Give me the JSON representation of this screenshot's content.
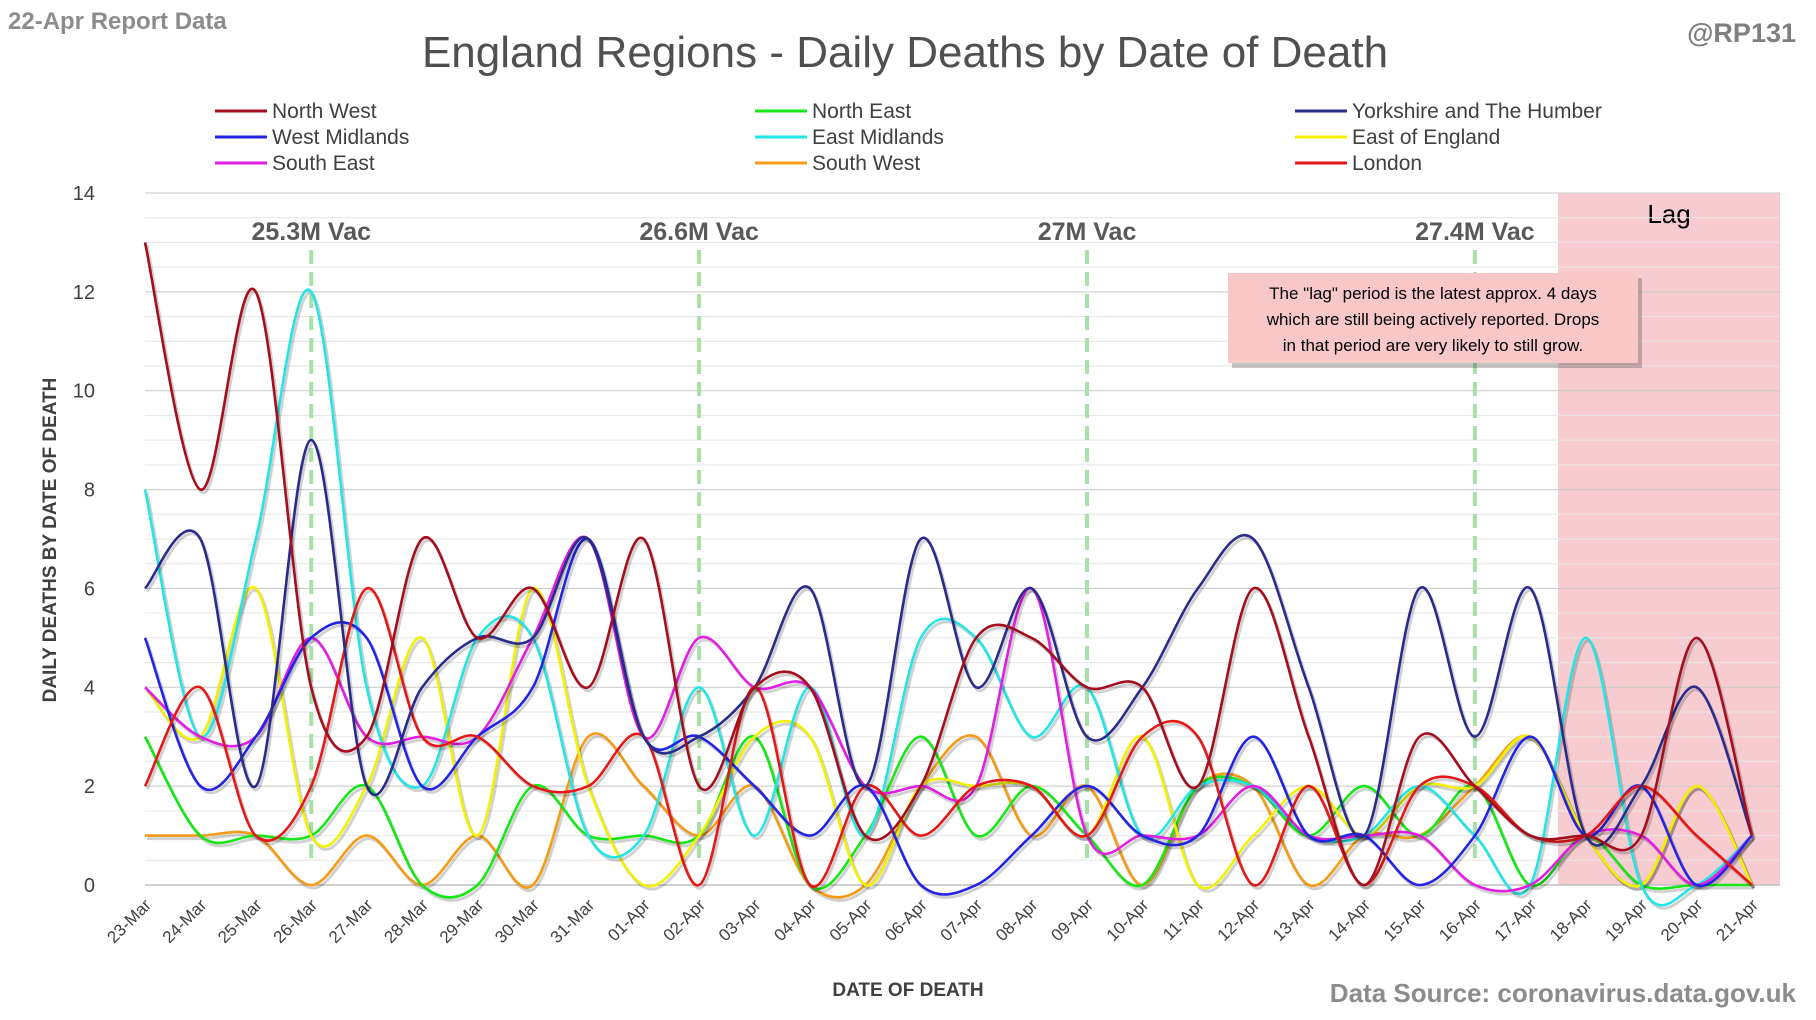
{
  "report_date": "22-Apr Report Data",
  "handle": "@RP131",
  "source": "Data Source: coronavirus.data.gov.uk",
  "chart_data": {
    "type": "line",
    "title": "England Regions - Daily Deaths by Date of Death",
    "xlabel": "DATE OF DEATH",
    "ylabel": "DAILY DEATHS BY DATE OF DEATH",
    "ylim": [
      0,
      14
    ],
    "yticks": [
      0,
      2,
      4,
      6,
      8,
      10,
      12,
      14
    ],
    "grid": true,
    "legend_position": "top",
    "categories": [
      "23-Mar",
      "24-Mar",
      "25-Mar",
      "26-Mar",
      "27-Mar",
      "28-Mar",
      "29-Mar",
      "30-Mar",
      "31-Mar",
      "01-Apr",
      "02-Apr",
      "03-Apr",
      "04-Apr",
      "05-Apr",
      "06-Apr",
      "07-Apr",
      "08-Apr",
      "09-Apr",
      "10-Apr",
      "11-Apr",
      "12-Apr",
      "13-Apr",
      "14-Apr",
      "15-Apr",
      "16-Apr",
      "17-Apr",
      "18-Apr",
      "19-Apr",
      "20-Apr",
      "21-Apr"
    ],
    "series": [
      {
        "name": "North West",
        "color": "#a50e1e",
        "values": [
          13,
          8,
          12,
          4,
          3,
          7,
          5,
          6,
          4,
          7,
          2,
          4,
          4,
          1,
          2,
          5,
          5,
          4,
          4,
          2,
          6,
          3,
          0,
          3,
          2,
          1,
          1,
          1,
          5,
          1
        ]
      },
      {
        "name": "North East",
        "color": "#17e617",
        "values": [
          3,
          1,
          1,
          1,
          2,
          0,
          0,
          2,
          1,
          1,
          1,
          3,
          0,
          1,
          3,
          1,
          2,
          1,
          0,
          2,
          2,
          1,
          2,
          1,
          2,
          0,
          1,
          0,
          0,
          0
        ]
      },
      {
        "name": "Yorkshire and The Humber",
        "color": "#2b2b8c",
        "values": [
          6,
          7,
          2,
          9,
          2,
          4,
          5,
          5,
          7,
          3,
          3,
          4,
          6,
          2,
          7,
          4,
          6,
          3,
          4,
          6,
          7,
          4,
          1,
          6,
          3,
          6,
          1,
          2,
          4,
          1
        ]
      },
      {
        "name": "West Midlands",
        "color": "#2424e6",
        "values": [
          5,
          2,
          3,
          5,
          5,
          2,
          3,
          4,
          7,
          3,
          3,
          2,
          1,
          2,
          0,
          0,
          1,
          2,
          1,
          1,
          3,
          1,
          1,
          0,
          1,
          3,
          1,
          2,
          0,
          1
        ]
      },
      {
        "name": "East Midlands",
        "color": "#22e6e6",
        "values": [
          8,
          3,
          7,
          12,
          4,
          2,
          5,
          5,
          1,
          1,
          4,
          1,
          4,
          1,
          5,
          5,
          3,
          4,
          1,
          2,
          2,
          1,
          1,
          2,
          1,
          0,
          5,
          0,
          0,
          1
        ]
      },
      {
        "name": "East of England",
        "color": "#f2f200",
        "values": [
          4,
          3,
          6,
          1,
          2,
          5,
          1,
          6,
          2,
          0,
          1,
          3,
          3,
          0,
          2,
          2,
          2,
          1,
          3,
          0,
          1,
          2,
          1,
          2,
          2,
          3,
          1,
          0,
          2,
          0
        ]
      },
      {
        "name": "South East",
        "color": "#e21ee2",
        "values": [
          4,
          3,
          3,
          5,
          3,
          3,
          3,
          5,
          7,
          3,
          5,
          4,
          4,
          2,
          2,
          2,
          6,
          1,
          1,
          1,
          2,
          1,
          1,
          1,
          0,
          0,
          1,
          1,
          0,
          1
        ]
      },
      {
        "name": "South West",
        "color": "#f59b16",
        "values": [
          1,
          1,
          1,
          0,
          1,
          0,
          1,
          0,
          3,
          2,
          1,
          2,
          0,
          0,
          2,
          3,
          1,
          2,
          0,
          2,
          2,
          0,
          1,
          1,
          2,
          3,
          1,
          0,
          2,
          0
        ]
      },
      {
        "name": "London",
        "color": "#e61717",
        "values": [
          2,
          4,
          1,
          2,
          6,
          3,
          3,
          2,
          2,
          3,
          0,
          4,
          0,
          2,
          1,
          2,
          2,
          1,
          3,
          3,
          0,
          2,
          0,
          2,
          2,
          1,
          1,
          2,
          1,
          0
        ]
      }
    ],
    "vaccine_markers": [
      {
        "label": "25.3M Vac",
        "category": "26-Mar"
      },
      {
        "label": "26.6M Vac",
        "category": "02-Apr"
      },
      {
        "label": "27M Vac",
        "category": "09-Apr"
      },
      {
        "label": "27.4M Vac",
        "category": "16-Apr"
      }
    ],
    "lag": {
      "label": "Lag",
      "from_category": "18-Apr",
      "note": [
        "The \"lag\" period is the latest approx. 4 days",
        "which are still being actively reported. Drops",
        "in that period are very likely to still grow."
      ]
    }
  }
}
